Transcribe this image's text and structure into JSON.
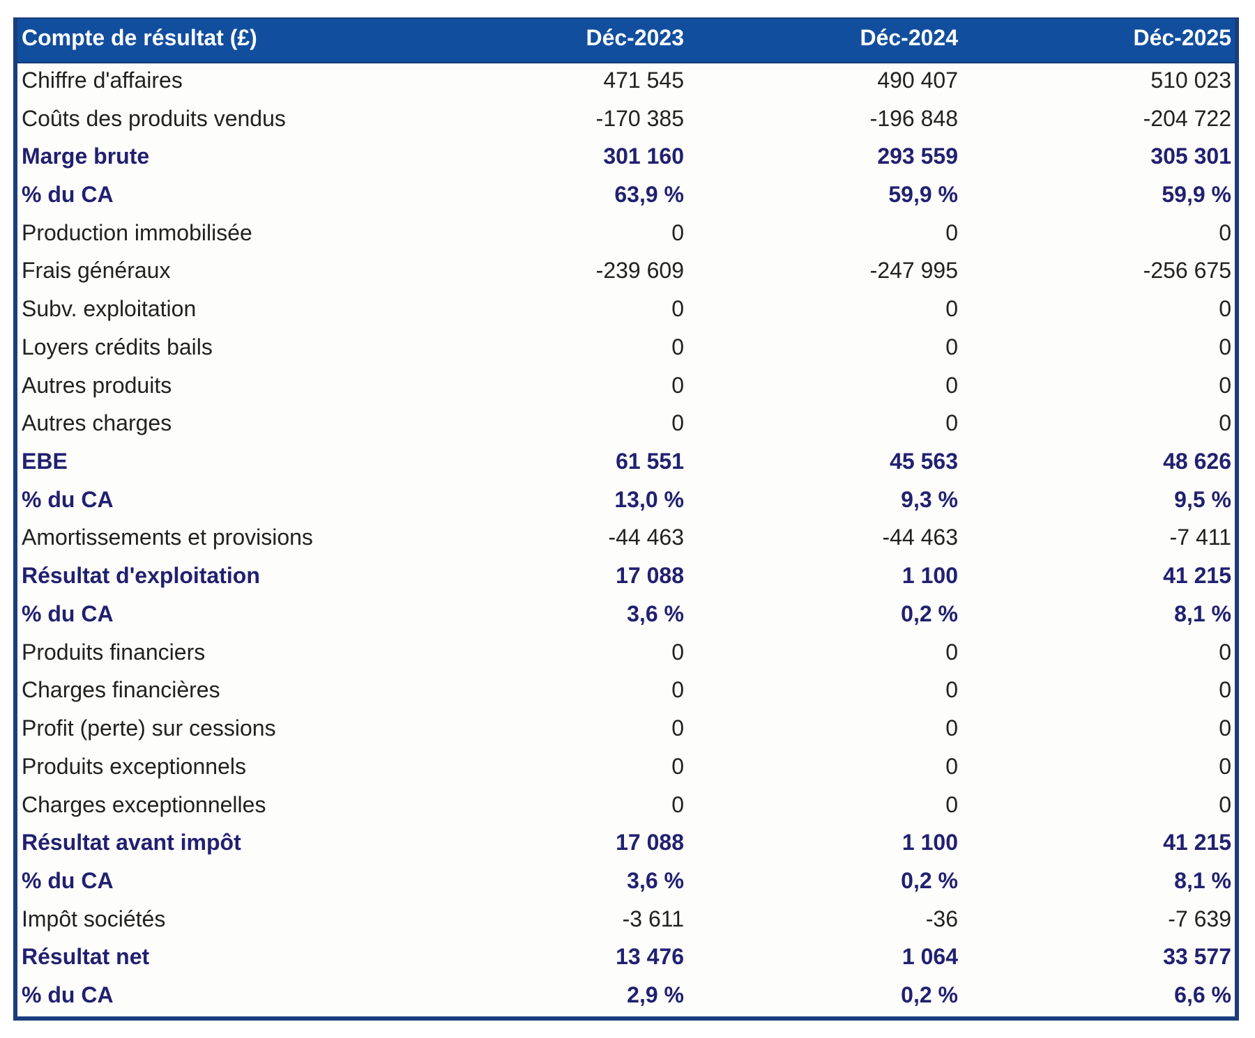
{
  "table": {
    "title": "Compte de résultat (£)",
    "columns": [
      "Déc-2023",
      "Déc-2024",
      "Déc-2025"
    ],
    "rows": [
      {
        "label": "Chiffre d'affaires",
        "values": [
          "471 545",
          "490 407",
          "510 023"
        ],
        "style": "normal"
      },
      {
        "label": "Coûts des produits vendus",
        "values": [
          "-170 385",
          "-196 848",
          "-204 722"
        ],
        "style": "normal"
      },
      {
        "label": "Marge brute",
        "values": [
          "301 160",
          "293 559",
          "305 301"
        ],
        "style": "bold"
      },
      {
        "label": "% du CA",
        "values": [
          "63,9 %",
          "59,9 %",
          "59,9 %"
        ],
        "style": "bold"
      },
      {
        "label": "Production immobilisée",
        "values": [
          "0",
          "0",
          "0"
        ],
        "style": "normal"
      },
      {
        "label": "Frais généraux",
        "values": [
          "-239 609",
          "-247 995",
          "-256 675"
        ],
        "style": "normal"
      },
      {
        "label": "Subv. exploitation",
        "values": [
          "0",
          "0",
          "0"
        ],
        "style": "normal"
      },
      {
        "label": "Loyers crédits bails",
        "values": [
          "0",
          "0",
          "0"
        ],
        "style": "normal"
      },
      {
        "label": "Autres produits",
        "values": [
          "0",
          "0",
          "0"
        ],
        "style": "normal"
      },
      {
        "label": "Autres charges",
        "values": [
          "0",
          "0",
          "0"
        ],
        "style": "normal"
      },
      {
        "label": "EBE",
        "values": [
          "61 551",
          "45 563",
          "48 626"
        ],
        "style": "bold"
      },
      {
        "label": "% du CA",
        "values": [
          "13,0 %",
          "9,3 %",
          "9,5 %"
        ],
        "style": "bold"
      },
      {
        "label": "Amortissements et provisions",
        "values": [
          "-44 463",
          "-44 463",
          "-7 411"
        ],
        "style": "normal"
      },
      {
        "label": "Résultat d'exploitation",
        "values": [
          "17 088",
          "1 100",
          "41 215"
        ],
        "style": "bold"
      },
      {
        "label": "% du CA",
        "values": [
          "3,6 %",
          "0,2 %",
          "8,1 %"
        ],
        "style": "bold"
      },
      {
        "label": "Produits financiers",
        "values": [
          "0",
          "0",
          "0"
        ],
        "style": "normal"
      },
      {
        "label": "Charges financières",
        "values": [
          "0",
          "0",
          "0"
        ],
        "style": "normal"
      },
      {
        "label": "Profit (perte) sur cessions",
        "values": [
          "0",
          "0",
          "0"
        ],
        "style": "normal"
      },
      {
        "label": "Produits exceptionnels",
        "values": [
          "0",
          "0",
          "0"
        ],
        "style": "normal"
      },
      {
        "label": "Charges exceptionnelles",
        "values": [
          "0",
          "0",
          "0"
        ],
        "style": "normal"
      },
      {
        "label": "Résultat avant impôt",
        "values": [
          "17 088",
          "1 100",
          "41 215"
        ],
        "style": "bold"
      },
      {
        "label": "% du CA",
        "values": [
          "3,6 %",
          "0,2 %",
          "8,1 %"
        ],
        "style": "bold"
      },
      {
        "label": "Impôt sociétés",
        "values": [
          "-3 611",
          "-36",
          "-7 639"
        ],
        "style": "normal"
      },
      {
        "label": "Résultat net",
        "values": [
          "13 476",
          "1 064",
          "33 577"
        ],
        "style": "bold"
      },
      {
        "label": "% du CA",
        "values": [
          "2,9 %",
          "0,2 %",
          "6,6 %"
        ],
        "style": "bold"
      }
    ],
    "colors": {
      "header_background": "#124e9e",
      "border": "#1a3e7c",
      "bold_row_text": "#212070",
      "normal_row_text": "#212121",
      "header_text": "#ffffff"
    }
  },
  "chart_data": {
    "type": "table",
    "title": "Compte de résultat (£)",
    "columns": [
      "Déc-2023",
      "Déc-2024",
      "Déc-2025"
    ],
    "rows": [
      {
        "label": "Chiffre d'affaires",
        "values": [
          471545,
          490407,
          510023
        ]
      },
      {
        "label": "Coûts des produits vendus",
        "values": [
          -170385,
          -196848,
          -204722
        ]
      },
      {
        "label": "Marge brute",
        "values": [
          301160,
          293559,
          305301
        ]
      },
      {
        "label": "% du CA",
        "values": [
          "63,9 %",
          "59,9 %",
          "59,9 %"
        ]
      },
      {
        "label": "Production immobilisée",
        "values": [
          0,
          0,
          0
        ]
      },
      {
        "label": "Frais généraux",
        "values": [
          -239609,
          -247995,
          -256675
        ]
      },
      {
        "label": "Subv. exploitation",
        "values": [
          0,
          0,
          0
        ]
      },
      {
        "label": "Loyers crédits bails",
        "values": [
          0,
          0,
          0
        ]
      },
      {
        "label": "Autres produits",
        "values": [
          0,
          0,
          0
        ]
      },
      {
        "label": "Autres charges",
        "values": [
          0,
          0,
          0
        ]
      },
      {
        "label": "EBE",
        "values": [
          61551,
          45563,
          48626
        ]
      },
      {
        "label": "% du CA",
        "values": [
          "13,0 %",
          "9,3 %",
          "9,5 %"
        ]
      },
      {
        "label": "Amortissements et provisions",
        "values": [
          -44463,
          -44463,
          -7411
        ]
      },
      {
        "label": "Résultat d'exploitation",
        "values": [
          17088,
          1100,
          41215
        ]
      },
      {
        "label": "% du CA",
        "values": [
          "3,6 %",
          "0,2 %",
          "8,1 %"
        ]
      },
      {
        "label": "Produits financiers",
        "values": [
          0,
          0,
          0
        ]
      },
      {
        "label": "Charges financières",
        "values": [
          0,
          0,
          0
        ]
      },
      {
        "label": "Profit (perte) sur cessions",
        "values": [
          0,
          0,
          0
        ]
      },
      {
        "label": "Produits exceptionnels",
        "values": [
          0,
          0,
          0
        ]
      },
      {
        "label": "Charges exceptionnelles",
        "values": [
          0,
          0,
          0
        ]
      },
      {
        "label": "Résultat avant impôt",
        "values": [
          17088,
          1100,
          41215
        ]
      },
      {
        "label": "% du CA",
        "values": [
          "3,6 %",
          "0,2 %",
          "8,1 %"
        ]
      },
      {
        "label": "Impôt sociétés",
        "values": [
          -3611,
          -36,
          -7639
        ]
      },
      {
        "label": "Résultat net",
        "values": [
          13476,
          1064,
          33577
        ]
      },
      {
        "label": "% du CA",
        "values": [
          "2,9 %",
          "0,2 %",
          "6,6 %"
        ]
      }
    ]
  }
}
